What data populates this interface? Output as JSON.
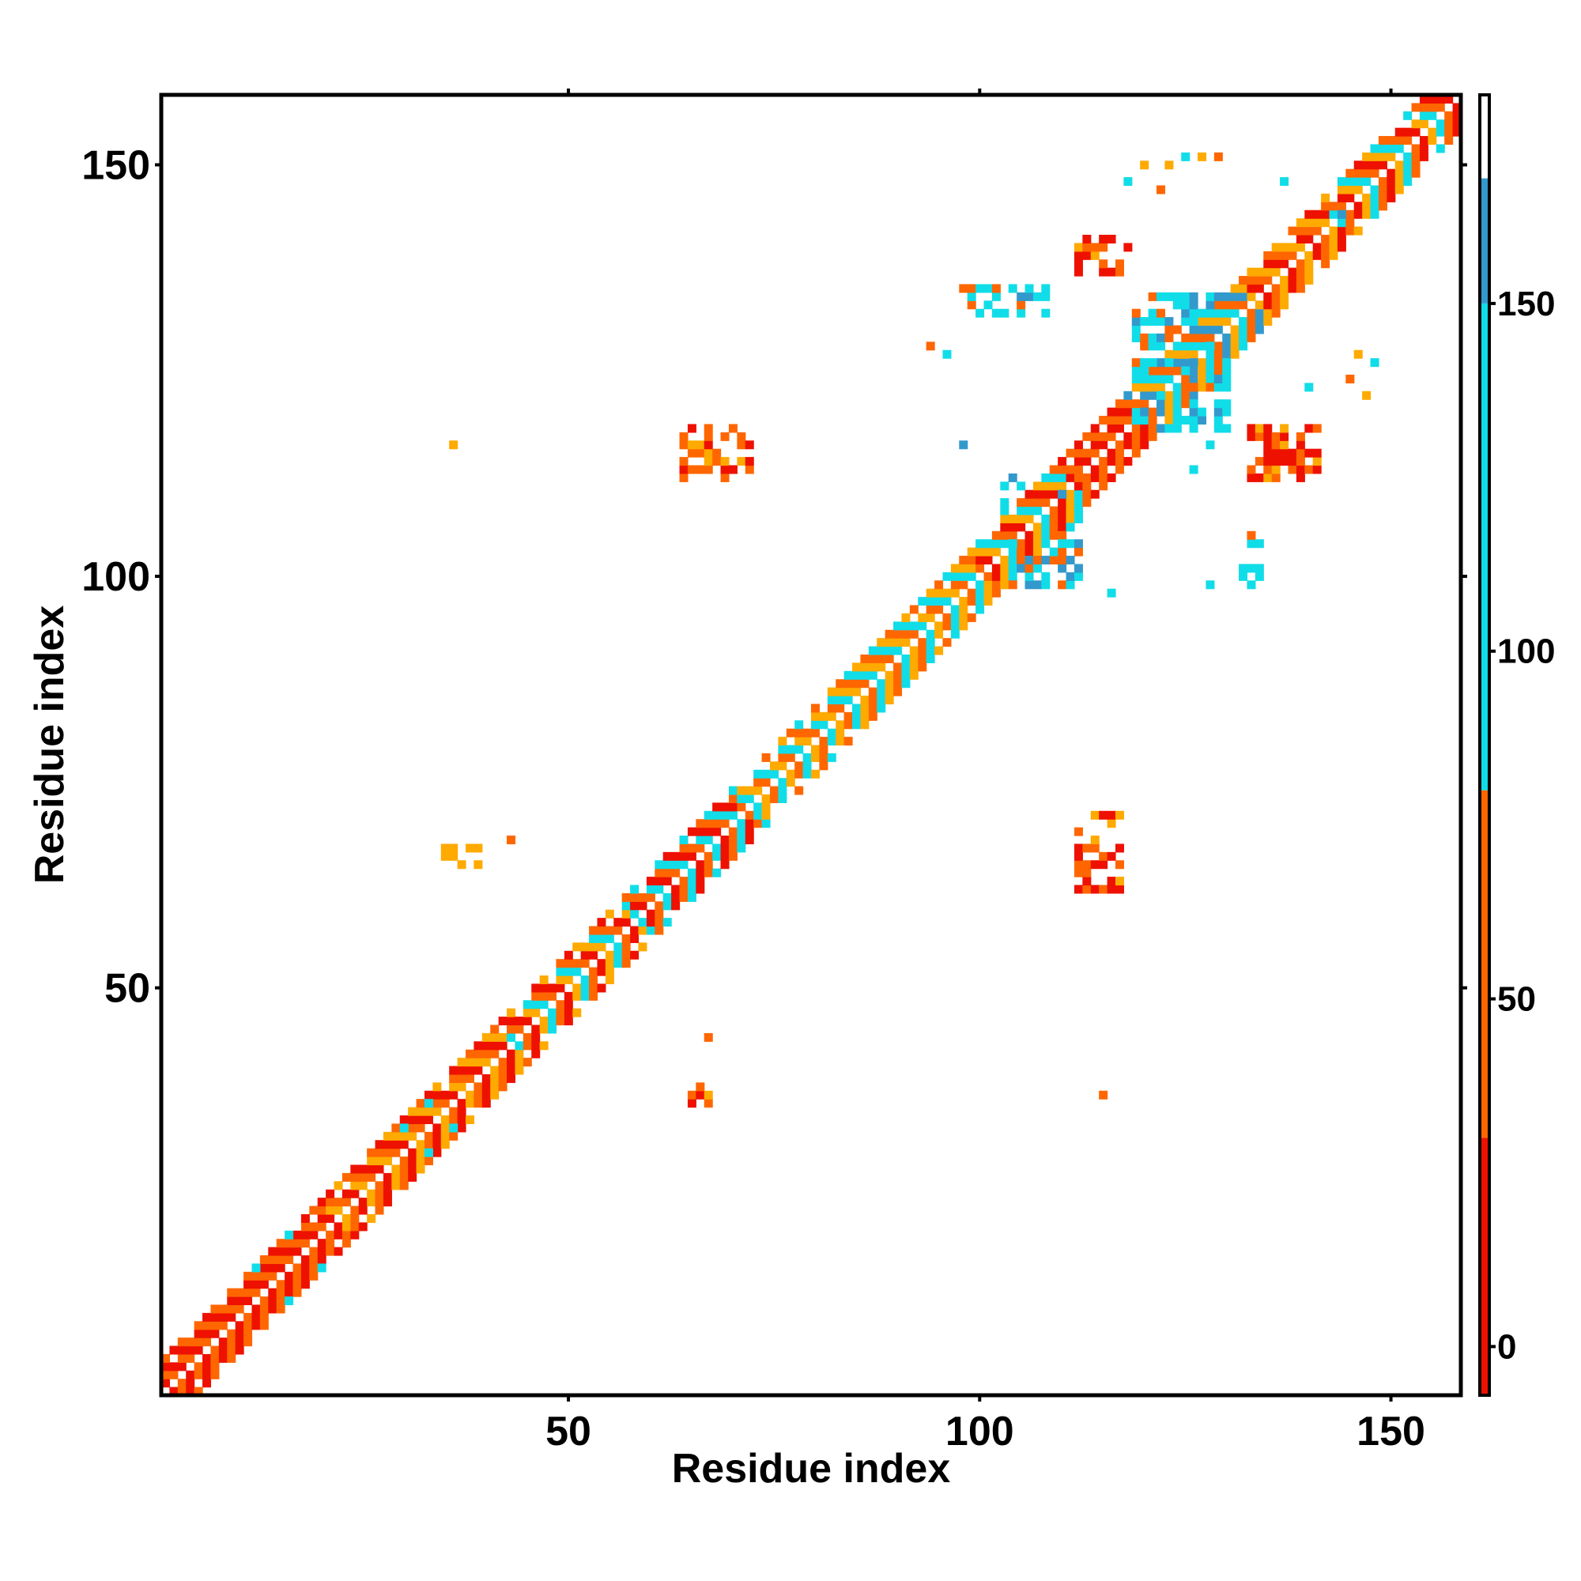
{
  "chart_data": {
    "type": "heatmap",
    "title": "",
    "xlabel": "Residue index",
    "ylabel": "Residue index",
    "xlim": [
      0.5,
      158.5
    ],
    "ylim": [
      0.5,
      158.5
    ],
    "x_ticks": [
      50,
      100,
      150
    ],
    "y_ticks": [
      50,
      100,
      150
    ],
    "grid": false,
    "legend": "colorbar-right",
    "colorbar": {
      "range": [
        -7,
        180
      ],
      "ticks": [
        0,
        50,
        100,
        150
      ],
      "segments": [
        {
          "from": -7,
          "to": 30,
          "color": "#ee1100"
        },
        {
          "from": 30,
          "to": 80,
          "color": "#ff6600"
        },
        {
          "from": 80,
          "to": 150,
          "color": "#11dde8"
        },
        {
          "from": 150,
          "to": 168,
          "color": "#3399cc"
        },
        {
          "from": 168,
          "to": 180,
          "color": "#ffffff"
        }
      ]
    },
    "color_classes": {
      "R": "#ee1100",
      "O": "#ff6600",
      "Y": "#ffaa00",
      "C": "#11dde8",
      "B": "#3399cc"
    },
    "bands": [
      {
        "from": 1,
        "to": 20,
        "pattern": [
          "R",
          "O"
        ]
      },
      {
        "from": 12,
        "to": 16,
        "pattern": [
          "C",
          "O"
        ]
      },
      {
        "from": 20,
        "to": 42,
        "pattern": [
          "O",
          "R",
          "Y"
        ]
      },
      {
        "from": 26,
        "to": 34,
        "pattern": [
          "C",
          "O",
          "Y"
        ]
      },
      {
        "from": 40,
        "to": 57,
        "pattern": [
          "C",
          "O",
          "R",
          "Y"
        ]
      },
      {
        "from": 57,
        "to": 70,
        "pattern": [
          "R",
          "O",
          "C"
        ]
      },
      {
        "from": 70,
        "to": 99,
        "pattern": [
          "O",
          "C",
          "Y"
        ]
      },
      {
        "from": 99,
        "to": 110,
        "pattern": [
          "C",
          "O",
          "R",
          "Y"
        ]
      },
      {
        "from": 110,
        "to": 118,
        "pattern": [
          "R",
          "O"
        ]
      },
      {
        "from": 118,
        "to": 132,
        "pattern": [
          "C",
          "O",
          "B",
          "Y"
        ]
      },
      {
        "from": 132,
        "to": 142,
        "pattern": [
          "R",
          "O",
          "Y"
        ]
      },
      {
        "from": 142,
        "to": 158,
        "pattern": [
          "C",
          "O",
          "R",
          "Y"
        ]
      }
    ],
    "clusters": [
      {
        "x": [
          64,
          72
        ],
        "y": [
          112,
          118
        ],
        "color": "O"
      },
      {
        "x": [
          112,
          118
        ],
        "y": [
          137,
          141
        ],
        "color": "R"
      },
      {
        "x": [
          133,
          141
        ],
        "y": [
          112,
          118
        ],
        "color": "R"
      },
      {
        "x": [
          112,
          117
        ],
        "y": [
          62,
          71
        ],
        "color": "R"
      },
      {
        "x": [
          35,
          39
        ],
        "y": [
          65,
          67
        ],
        "color": "Y"
      },
      {
        "x": [
          65,
          67
        ],
        "y": [
          36,
          39
        ],
        "color": "O"
      },
      {
        "x": [
          98,
          108
        ],
        "y": [
          132,
          135
        ],
        "color": "C"
      },
      {
        "x": [
          119,
          130
        ],
        "y": [
          118,
          134
        ],
        "color": "C"
      },
      {
        "x": [
          132,
          134
        ],
        "y": [
          99,
          105
        ],
        "color": "C"
      },
      {
        "x": [
          103,
          112
        ],
        "y": [
          99,
          112
        ],
        "color": "C"
      }
    ],
    "sparse_points": [
      [
        36,
        116,
        "Y"
      ],
      [
        43,
        68,
        "O"
      ],
      [
        67,
        44,
        "O"
      ],
      [
        115,
        37,
        "O"
      ],
      [
        118,
        148,
        "C"
      ],
      [
        122,
        147,
        "O"
      ],
      [
        123,
        150,
        "Y"
      ],
      [
        125,
        151,
        "C"
      ],
      [
        127,
        151,
        "Y"
      ],
      [
        129,
        151,
        "O"
      ],
      [
        120,
        150,
        "Y"
      ],
      [
        137,
        148,
        "C"
      ],
      [
        146,
        127,
        "Y"
      ],
      [
        148,
        126,
        "C"
      ],
      [
        145,
        124,
        "O"
      ],
      [
        147,
        122,
        "Y"
      ],
      [
        96,
        127,
        "C"
      ],
      [
        98,
        116,
        "B"
      ],
      [
        126,
        113,
        "C"
      ],
      [
        128,
        116,
        "C"
      ],
      [
        116,
        98,
        "C"
      ],
      [
        128,
        99,
        "C"
      ],
      [
        140,
        123,
        "C"
      ],
      [
        144,
        144,
        "B"
      ],
      [
        94,
        128,
        "O"
      ],
      [
        110,
        104,
        "C"
      ]
    ]
  }
}
